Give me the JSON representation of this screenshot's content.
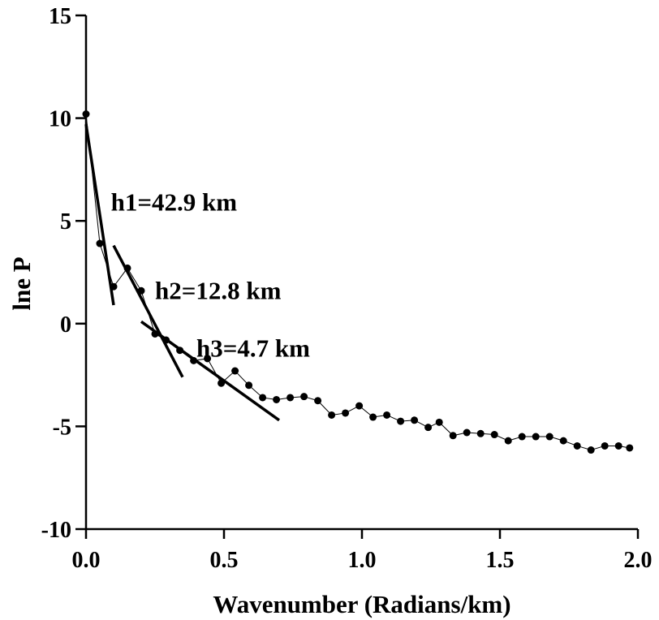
{
  "chart_data": {
    "type": "line",
    "title": "",
    "xlabel": "Wavenumber (Radians/km)",
    "ylabel": "lne P",
    "xlim": [
      0,
      2.0
    ],
    "ylim": [
      -10,
      15
    ],
    "xticks": [
      0.0,
      0.5,
      1.0,
      1.5,
      2.0
    ],
    "xtick_labels": [
      "0.0",
      "0.5",
      "1.0",
      "1.5",
      "2.0"
    ],
    "yticks": [
      -10,
      -5,
      0,
      5,
      10,
      15
    ],
    "ytick_labels": [
      "-10",
      "-5",
      "0",
      "5",
      "10",
      "15"
    ],
    "grid": false,
    "legend": "none",
    "series": [
      {
        "x": [
          0.0,
          0.05,
          0.1,
          0.15,
          0.2,
          0.25,
          0.29,
          0.34,
          0.39,
          0.44,
          0.49,
          0.54,
          0.59,
          0.64,
          0.69,
          0.74,
          0.79,
          0.84,
          0.89,
          0.94,
          0.99,
          1.04,
          1.09,
          1.14,
          1.19,
          1.24,
          1.28,
          1.33,
          1.38,
          1.43,
          1.48,
          1.53,
          1.58,
          1.63,
          1.68,
          1.73,
          1.78,
          1.83,
          1.88,
          1.93,
          1.97
        ],
        "y": [
          10.2,
          3.9,
          1.8,
          2.7,
          1.6,
          -0.5,
          -0.8,
          -1.3,
          -1.8,
          -1.7,
          -2.9,
          -2.3,
          -3.0,
          -3.6,
          -3.7,
          -3.6,
          -3.55,
          -3.75,
          -4.45,
          -4.35,
          -4.0,
          -4.55,
          -4.45,
          -4.75,
          -4.7,
          -5.05,
          -4.8,
          -5.45,
          -5.3,
          -5.35,
          -5.4,
          -5.7,
          -5.5,
          -5.5,
          -5.5,
          -5.7,
          -5.95,
          -6.15,
          -5.95,
          -5.95,
          -6.05
        ]
      }
    ],
    "fit_lines": [
      {
        "x": [
          0.0,
          0.1
        ],
        "y": [
          9.7,
          0.9
        ]
      },
      {
        "x": [
          0.1,
          0.35
        ],
        "y": [
          3.8,
          -2.6
        ]
      },
      {
        "x": [
          0.2,
          0.7
        ],
        "y": [
          0.1,
          -4.7
        ]
      }
    ],
    "annotations": [
      {
        "text": "h1=42.9 km",
        "x": 0.09,
        "y": 5.5
      },
      {
        "text": "h2=12.8 km",
        "x": 0.25,
        "y": 1.2
      },
      {
        "text": "h3=4.7 km",
        "x": 0.4,
        "y": -1.6
      }
    ]
  }
}
